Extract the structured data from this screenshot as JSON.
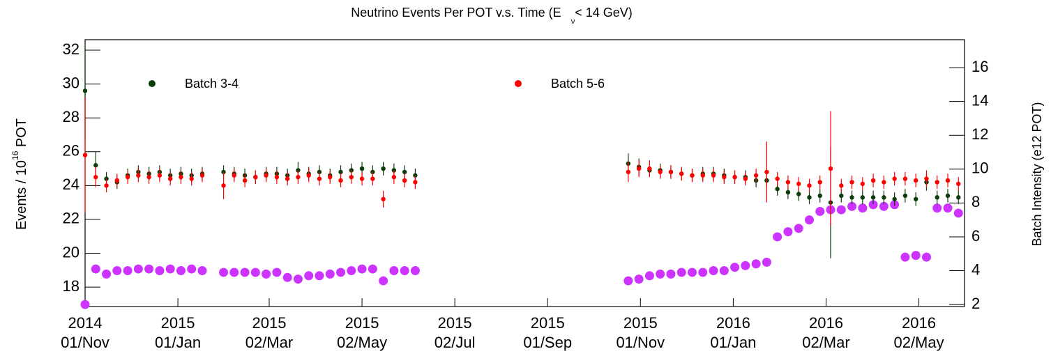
{
  "chart_data": {
    "type": "scatter",
    "title": [
      "Neutrino Events Per POT v.s. Time (E",
      "ν",
      "< 14 GeV)"
    ],
    "ylabel": [
      "Events / 10",
      "16",
      " POT"
    ],
    "y2label": "Batch Intensity (e12 POT)",
    "x": [
      "2014-11-01",
      "2014-11-08",
      "2014-11-15",
      "2014-11-22",
      "2014-11-29",
      "2014-12-06",
      "2014-12-13",
      "2014-12-20",
      "2014-12-27",
      "2015-01-03",
      "2015-01-10",
      "2015-01-17",
      "2015-01-31",
      "2015-02-07",
      "2015-02-14",
      "2015-02-21",
      "2015-02-28",
      "2015-03-07",
      "2015-03-14",
      "2015-03-21",
      "2015-03-28",
      "2015-04-04",
      "2015-04-11",
      "2015-04-18",
      "2015-04-25",
      "2015-05-02",
      "2015-05-09",
      "2015-05-16",
      "2015-05-23",
      "2015-05-30",
      "2015-06-06",
      "2015-10-24",
      "2015-10-31",
      "2015-11-07",
      "2015-11-14",
      "2015-11-21",
      "2015-11-28",
      "2015-12-05",
      "2015-12-12",
      "2015-12-19",
      "2015-12-26",
      "2016-01-02",
      "2016-01-09",
      "2016-01-16",
      "2016-01-23",
      "2016-01-30",
      "2016-02-06",
      "2016-02-13",
      "2016-02-20",
      "2016-02-27",
      "2016-03-05",
      "2016-03-12",
      "2016-03-19",
      "2016-03-26",
      "2016-04-02",
      "2016-04-09",
      "2016-04-16",
      "2016-04-23",
      "2016-04-30",
      "2016-05-07",
      "2016-05-14",
      "2016-05-21",
      "2016-05-28"
    ],
    "series": [
      {
        "name": "Batch 3-4",
        "color": "#0b3d0b",
        "values": [
          29.6,
          25.2,
          24.4,
          24.2,
          24.6,
          24.8,
          24.7,
          24.8,
          24.6,
          24.7,
          24.6,
          24.7,
          24.8,
          24.7,
          24.6,
          24.5,
          24.7,
          24.7,
          24.6,
          24.9,
          24.7,
          24.8,
          24.6,
          24.8,
          24.9,
          25.0,
          24.8,
          25.0,
          24.9,
          24.8,
          24.6,
          25.3,
          25.1,
          24.9,
          24.9,
          24.8,
          24.7,
          24.6,
          24.7,
          24.7,
          24.6,
          24.5,
          24.5,
          24.3,
          24.3,
          23.8,
          23.6,
          23.5,
          23.3,
          23.4,
          23.0,
          23.4,
          23.3,
          23.3,
          23.3,
          23.3,
          23.2,
          23.4,
          23.2,
          24.2,
          23.3,
          23.4,
          23.3
        ],
        "errors": [
          2.9,
          0.8,
          0.4,
          0.4,
          0.4,
          0.4,
          0.4,
          0.4,
          0.4,
          0.4,
          0.4,
          0.4,
          0.4,
          0.4,
          0.4,
          0.4,
          0.4,
          0.4,
          0.4,
          0.5,
          0.4,
          0.4,
          0.4,
          0.4,
          0.4,
          0.4,
          0.4,
          0.4,
          0.4,
          0.4,
          0.4,
          0.6,
          0.5,
          0.4,
          0.4,
          0.4,
          0.4,
          0.4,
          0.4,
          0.4,
          0.4,
          0.4,
          0.4,
          0.4,
          0.4,
          0.4,
          0.4,
          0.4,
          0.4,
          0.4,
          3.3,
          0.4,
          0.4,
          0.4,
          0.4,
          0.4,
          0.4,
          0.4,
          0.4,
          0.5,
          0.4,
          0.4,
          0.4
        ]
      },
      {
        "name": "Batch 5-6",
        "color": "#ff0000",
        "values": [
          25.8,
          24.5,
          24.0,
          24.3,
          24.5,
          24.6,
          24.5,
          24.6,
          24.4,
          24.5,
          24.4,
          24.6,
          24.0,
          24.6,
          24.3,
          24.5,
          24.6,
          24.5,
          24.4,
          24.5,
          24.6,
          24.4,
          24.5,
          24.3,
          24.5,
          24.4,
          24.4,
          23.2,
          24.5,
          24.3,
          24.2,
          24.8,
          25.0,
          25.0,
          24.8,
          24.8,
          24.7,
          24.6,
          24.6,
          24.6,
          24.5,
          24.5,
          24.4,
          24.6,
          24.8,
          24.4,
          24.2,
          24.1,
          24.0,
          24.2,
          25.0,
          24.0,
          24.2,
          24.1,
          24.3,
          24.2,
          24.4,
          24.4,
          24.3,
          24.4,
          24.2,
          24.3,
          24.1
        ],
        "errors": [
          3.4,
          0.6,
          0.4,
          0.4,
          0.4,
          0.4,
          0.4,
          0.4,
          0.4,
          0.4,
          0.4,
          0.4,
          0.8,
          0.4,
          0.4,
          0.4,
          0.4,
          0.4,
          0.4,
          0.4,
          0.4,
          0.4,
          0.4,
          0.4,
          0.4,
          0.4,
          0.4,
          0.5,
          0.4,
          0.4,
          0.4,
          0.6,
          0.5,
          0.5,
          0.4,
          0.4,
          0.4,
          0.4,
          0.4,
          0.4,
          0.4,
          0.4,
          0.4,
          0.4,
          1.8,
          0.4,
          0.4,
          0.4,
          0.4,
          0.4,
          3.4,
          0.4,
          0.4,
          0.4,
          0.4,
          0.4,
          0.4,
          0.4,
          0.4,
          0.5,
          0.4,
          0.4,
          0.4
        ]
      },
      {
        "color": "#cc33ff",
        "axis": "y2",
        "values": [
          2.0,
          4.1,
          3.8,
          4.0,
          4.0,
          4.1,
          4.1,
          4.0,
          4.1,
          4.0,
          4.1,
          4.0,
          3.9,
          3.9,
          3.9,
          3.9,
          3.8,
          3.9,
          3.6,
          3.5,
          3.7,
          3.7,
          3.8,
          3.9,
          4.0,
          4.1,
          4.1,
          3.4,
          4.0,
          4.0,
          4.0,
          3.4,
          3.5,
          3.7,
          3.8,
          3.8,
          3.9,
          3.9,
          3.9,
          4.0,
          4.0,
          4.2,
          4.3,
          4.4,
          4.5,
          6.0,
          6.3,
          6.5,
          7.0,
          7.5,
          7.6,
          7.6,
          7.8,
          7.7,
          7.9,
          7.8,
          7.9,
          4.8,
          4.9,
          4.8,
          7.7,
          7.7,
          7.4
        ]
      }
    ],
    "xlim": [
      "2014-11-01",
      "2016-06-01"
    ],
    "xticks": [
      {
        "value": "2014-11-01",
        "label": [
          "2014",
          "01/Nov"
        ]
      },
      {
        "value": "2015-01-01",
        "label": [
          "2015",
          "01/Jan"
        ]
      },
      {
        "value": "2015-03-02",
        "label": [
          "2015",
          "02/Mar"
        ]
      },
      {
        "value": "2015-05-02",
        "label": [
          "2015",
          "02/May"
        ]
      },
      {
        "value": "2015-07-02",
        "label": [
          "2015",
          "02/Jul"
        ]
      },
      {
        "value": "2015-09-01",
        "label": [
          "2015",
          "01/Sep"
        ]
      },
      {
        "value": "2015-11-01",
        "label": [
          "2015",
          "01/Nov"
        ]
      },
      {
        "value": "2016-01-01",
        "label": [
          "2016",
          "01/Jan"
        ]
      },
      {
        "value": "2016-03-02",
        "label": [
          "2016",
          "02/Mar"
        ]
      },
      {
        "value": "2016-05-02",
        "label": [
          "2016",
          "02/May"
        ]
      }
    ],
    "ylim": [
      16.85,
      32.62
    ],
    "yticks": [
      18,
      20,
      22,
      24,
      26,
      28,
      30,
      32
    ],
    "y2lim": [
      1.88,
      17.65
    ],
    "y2ticks": [
      2,
      4,
      6,
      8,
      10,
      12,
      14,
      16
    ],
    "grid": false
  }
}
